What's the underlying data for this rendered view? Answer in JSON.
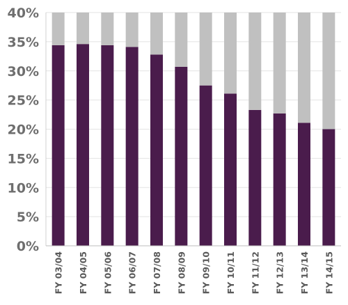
{
  "chart_data": {
    "type": "bar",
    "stacked": true,
    "categories": [
      "FY 03/04",
      "FY 04/05",
      "FY 05/06",
      "FY 06/07",
      "FY 07/08",
      "FY 08/09",
      "FY 09/10",
      "FY 10/11",
      "FY 11/12",
      "FY 12/13",
      "FY 13/14",
      "FY 14/15"
    ],
    "series": [
      {
        "color": "#4a1c4c",
        "values": [
          34.4,
          34.6,
          34.4,
          34.1,
          32.8,
          30.7,
          27.5,
          26.1,
          23.3,
          22.7,
          21.1,
          20.0
        ]
      },
      {
        "color": "#c0c0c0",
        "values": [
          5.6,
          5.4,
          5.6,
          5.9,
          7.2,
          9.3,
          12.5,
          13.9,
          16.7,
          17.3,
          18.9,
          20.0
        ]
      }
    ],
    "ylim": [
      0,
      40
    ],
    "yticks": [
      "0%",
      "5%",
      "10%",
      "15%",
      "20%",
      "25%",
      "30%",
      "35%",
      "40%"
    ],
    "grid": true,
    "legend": "none",
    "title": "",
    "xlabel": "",
    "ylabel": ""
  }
}
